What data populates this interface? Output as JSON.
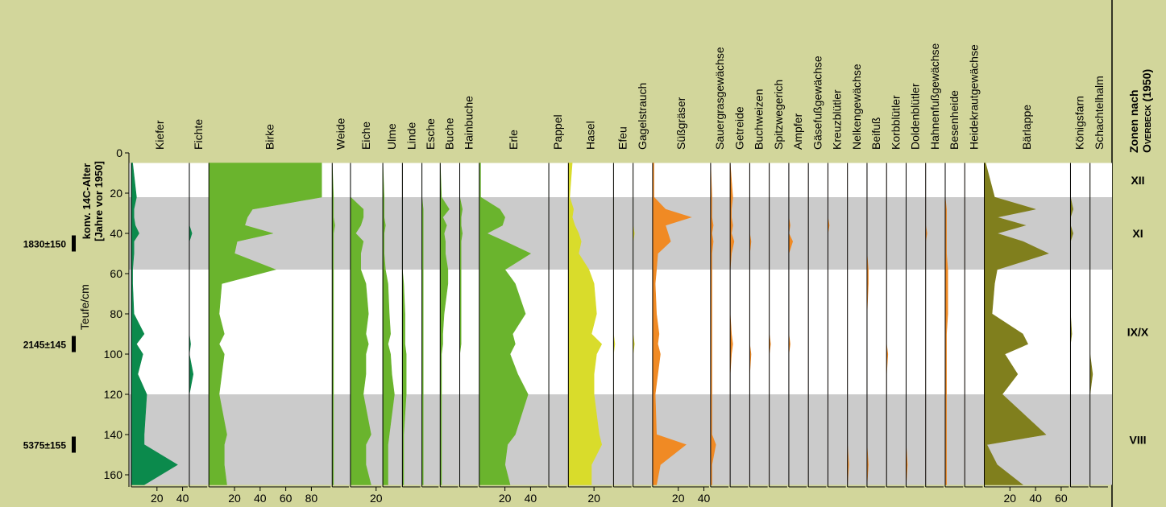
{
  "chart_data": {
    "type": "area",
    "y_title": "Teufe/cm",
    "age_title": [
      "konv. 14C-Alter",
      "[Jahre vor 1950]"
    ],
    "zone_title": [
      "Zonen nach",
      "Overbeck (1950)"
    ],
    "ylim": [
      0,
      166
    ],
    "yticks": [
      0,
      20,
      40,
      60,
      80,
      100,
      120,
      140,
      160
    ],
    "depth": [
      5,
      22,
      28,
      32,
      36,
      40,
      44,
      50,
      58,
      65,
      80,
      90,
      95,
      100,
      110,
      120,
      140,
      145,
      155,
      165
    ],
    "zones": [
      {
        "label": "XII",
        "from": 5,
        "to": 22,
        "shaded": false
      },
      {
        "label": "XI",
        "from": 22,
        "to": 58,
        "shaded": true
      },
      {
        "label": "IX/X",
        "from": 58,
        "to": 120,
        "shaded": false
      },
      {
        "label": "VIII",
        "from": 120,
        "to": 165,
        "shaded": true
      }
    ],
    "ages": [
      {
        "label": "1830±150",
        "depth": 45
      },
      {
        "label": "2145±145",
        "depth": 95
      },
      {
        "label": "5375±155",
        "depth": 145
      }
    ],
    "series": [
      {
        "name": "Kiefer",
        "color": "#0b8a4c",
        "xlim": [
          0,
          44
        ],
        "xticks": [
          20,
          40
        ],
        "values": [
          1,
          4,
          2,
          2,
          3,
          6,
          2,
          2,
          1,
          1,
          2,
          10,
          4,
          9,
          5,
          12,
          10,
          10,
          36,
          10
        ]
      },
      {
        "name": "Fichte",
        "color": "#0b8a4c",
        "xlim": [
          0,
          14
        ],
        "values": [
          0,
          0,
          0,
          0,
          0,
          2,
          0,
          0,
          0,
          0,
          0,
          0,
          1,
          0,
          3,
          0,
          0,
          0,
          0,
          0
        ]
      },
      {
        "name": "Birke",
        "color": "#6ab42d",
        "xlim": [
          0,
          95
        ],
        "xticks": [
          20,
          40,
          60,
          80
        ],
        "values": [
          88,
          88,
          34,
          30,
          28,
          50,
          22,
          20,
          52,
          10,
          8,
          12,
          8,
          12,
          10,
          8,
          14,
          12,
          12,
          14
        ]
      },
      {
        "name": "Weide",
        "color": "#6ab42d",
        "xlim": [
          0,
          13
        ],
        "values": [
          0,
          1,
          1,
          1,
          2,
          1,
          1,
          1,
          1,
          1,
          1,
          1,
          1,
          1,
          1,
          1,
          1,
          1,
          1,
          1
        ]
      },
      {
        "name": "Eiche",
        "color": "#6ab42d",
        "xlim": [
          0,
          24
        ],
        "xticks": [
          20
        ],
        "values": [
          0,
          0,
          10,
          10,
          8,
          4,
          10,
          8,
          8,
          12,
          14,
          12,
          14,
          12,
          12,
          10,
          16,
          12,
          12,
          16
        ]
      },
      {
        "name": "Ulme",
        "color": "#6ab42d",
        "xlim": [
          0,
          14
        ],
        "values": [
          0,
          1,
          1,
          1,
          2,
          1,
          1,
          1,
          2,
          4,
          5,
          6,
          4,
          6,
          7,
          9,
          5,
          4,
          4,
          4
        ]
      },
      {
        "name": "Linde",
        "color": "#6ab42d",
        "xlim": [
          0,
          14
        ],
        "values": [
          0,
          0,
          0,
          0,
          0,
          0,
          0,
          0,
          0,
          1,
          2,
          2,
          2,
          3,
          3,
          3,
          1,
          1,
          1,
          1
        ]
      },
      {
        "name": "Esche",
        "color": "#6ab42d",
        "xlim": [
          0,
          13
        ],
        "values": [
          0,
          0,
          1,
          1,
          1,
          1,
          1,
          1,
          1,
          1,
          1,
          1,
          1,
          1,
          1,
          1,
          1,
          1,
          1,
          1
        ]
      },
      {
        "name": "Buche",
        "color": "#6ab42d",
        "xlim": [
          0,
          14
        ],
        "values": [
          0,
          1,
          7,
          2,
          5,
          3,
          4,
          4,
          6,
          6,
          3,
          2,
          2,
          1,
          1,
          1,
          1,
          1,
          1,
          1
        ]
      },
      {
        "name": "Hainbuche",
        "color": "#6ab42d",
        "xlim": [
          0,
          14
        ],
        "values": [
          0,
          0,
          2,
          1,
          1,
          2,
          1,
          1,
          1,
          1,
          1,
          1,
          1,
          0,
          0,
          0,
          0,
          0,
          0,
          0
        ]
      },
      {
        "name": "Erle",
        "color": "#6ab42d",
        "xlim": [
          0,
          53
        ],
        "xticks": [
          20,
          40
        ],
        "values": [
          1,
          1,
          16,
          20,
          18,
          6,
          20,
          40,
          20,
          28,
          36,
          26,
          28,
          24,
          30,
          38,
          28,
          22,
          20,
          24
        ]
      },
      {
        "name": "Pappel",
        "color": "#6ab42d",
        "xlim": [
          0,
          14
        ],
        "values": [
          0,
          0,
          0,
          0,
          0,
          0,
          0,
          0,
          0,
          0,
          0,
          0,
          0,
          0,
          0,
          0,
          0,
          0,
          0,
          0
        ]
      },
      {
        "name": "Hasel",
        "color": "#d9dc2b",
        "xlim": [
          0,
          34
        ],
        "xticks": [
          20
        ],
        "values": [
          3,
          1,
          4,
          3,
          5,
          8,
          10,
          8,
          16,
          20,
          22,
          18,
          26,
          22,
          20,
          20,
          24,
          26,
          18,
          18
        ]
      },
      {
        "name": "Efeu",
        "color": "#d9dc2b",
        "xlim": [
          0,
          14
        ],
        "values": [
          0,
          0,
          0,
          0,
          0,
          0,
          0,
          0,
          0,
          0,
          0,
          0,
          1,
          0,
          0,
          0,
          0,
          0,
          0,
          0
        ]
      },
      {
        "name": "Gagelstrauch",
        "color": "#d9dc2b",
        "xlim": [
          0,
          14
        ],
        "values": [
          0,
          0,
          0,
          0,
          0,
          1,
          0,
          0,
          0,
          0,
          0,
          0,
          1,
          0,
          0,
          0,
          0,
          0,
          0,
          0
        ]
      },
      {
        "name": "Süßgräser",
        "color": "#f08a24",
        "xlim": [
          0,
          44
        ],
        "xticks": [
          20,
          40
        ],
        "values": [
          1,
          1,
          10,
          30,
          10,
          12,
          14,
          4,
          3,
          2,
          3,
          5,
          4,
          6,
          4,
          2,
          3,
          26,
          6,
          3
        ]
      },
      {
        "name": "Sauergrasgewächse",
        "color": "#f08a24",
        "xlim": [
          0,
          14
        ],
        "values": [
          0,
          1,
          1,
          1,
          2,
          1,
          2,
          1,
          1,
          1,
          1,
          1,
          1,
          1,
          1,
          1,
          1,
          4,
          1,
          1
        ]
      },
      {
        "name": "Getreide",
        "color": "#f08a24",
        "xlim": [
          0,
          14
        ],
        "values": [
          0,
          2,
          1,
          1,
          2,
          1,
          3,
          1,
          0,
          0,
          0,
          1,
          2,
          1,
          0,
          0,
          0,
          0,
          0,
          0
        ]
      },
      {
        "name": "Buchweizen",
        "color": "#f08a24",
        "xlim": [
          0,
          14
        ],
        "values": [
          0,
          0,
          0,
          0,
          0,
          0,
          1,
          0,
          0,
          0,
          0,
          0,
          0,
          1,
          0,
          0,
          0,
          0,
          0,
          0
        ]
      },
      {
        "name": "Spitzwegerich",
        "color": "#f08a24",
        "xlim": [
          0,
          14
        ],
        "values": [
          0,
          0,
          0,
          0,
          0,
          0,
          0,
          0,
          0,
          0,
          0,
          0,
          1,
          0,
          0,
          0,
          0,
          0,
          0,
          0
        ]
      },
      {
        "name": "Ampfer",
        "color": "#f08a24",
        "xlim": [
          0,
          14
        ],
        "values": [
          0,
          0,
          0,
          0,
          1,
          0,
          3,
          0,
          0,
          0,
          0,
          0,
          1,
          0,
          0,
          0,
          0,
          0,
          0,
          0
        ]
      },
      {
        "name": "Gäsefußgewächse",
        "color": "#f08a24",
        "xlim": [
          0,
          14
        ],
        "values": [
          0,
          0,
          0,
          0,
          0,
          0,
          0,
          0,
          0,
          0,
          0,
          0,
          0,
          0,
          0,
          0,
          0,
          0,
          0,
          0
        ]
      },
      {
        "name": "Kreuzblütler",
        "color": "#f08a24",
        "xlim": [
          0,
          14
        ],
        "values": [
          0,
          0,
          0,
          0,
          1,
          0,
          0,
          0,
          0,
          0,
          0,
          0,
          0,
          0,
          0,
          0,
          0,
          0,
          0,
          0
        ]
      },
      {
        "name": "Nelkengewächse",
        "color": "#f08a24",
        "xlim": [
          0,
          14
        ],
        "values": [
          0,
          0,
          0,
          0,
          0,
          0,
          0,
          0,
          0,
          0,
          0,
          0,
          0,
          0,
          0,
          0,
          0,
          0,
          1,
          0
        ]
      },
      {
        "name": "Beifuß",
        "color": "#f08a24",
        "xlim": [
          0,
          14
        ],
        "values": [
          0,
          0,
          0,
          0,
          0,
          0,
          0,
          0,
          1,
          1,
          0,
          0,
          0,
          0,
          0,
          0,
          0,
          0,
          1,
          0
        ]
      },
      {
        "name": "Korbblütler",
        "color": "#f08a24",
        "xlim": [
          0,
          14
        ],
        "values": [
          0,
          0,
          0,
          0,
          0,
          0,
          0,
          0,
          0,
          0,
          0,
          0,
          0,
          1,
          0,
          0,
          0,
          0,
          0,
          0
        ]
      },
      {
        "name": "Doldenblütler",
        "color": "#f08a24",
        "xlim": [
          0,
          14
        ],
        "values": [
          0,
          0,
          0,
          0,
          0,
          0,
          0,
          0,
          0,
          0,
          0,
          0,
          0,
          0,
          0,
          0,
          0,
          0,
          1,
          0
        ]
      },
      {
        "name": "Hahnenfußgewächse",
        "color": "#f08a24",
        "xlim": [
          0,
          14
        ],
        "values": [
          0,
          0,
          0,
          0,
          0,
          1,
          0,
          0,
          0,
          0,
          0,
          0,
          0,
          0,
          0,
          0,
          0,
          0,
          0,
          0
        ]
      },
      {
        "name": "Besenheide",
        "color": "#f08a24",
        "xlim": [
          0,
          14
        ],
        "values": [
          0,
          0,
          1,
          1,
          1,
          1,
          1,
          1,
          2,
          2,
          2,
          1,
          1,
          1,
          1,
          1,
          1,
          1,
          1,
          1
        ]
      },
      {
        "name": "Heidekrautgewächse",
        "color": "#f08a24",
        "xlim": [
          0,
          14
        ],
        "values": [
          0,
          0,
          0,
          0,
          0,
          0,
          0,
          0,
          0,
          0,
          0,
          0,
          0,
          0,
          0,
          0,
          0,
          0,
          0,
          0
        ]
      },
      {
        "name": "Bärlappe",
        "color": "#807f1d",
        "xlim": [
          0,
          66
        ],
        "xticks": [
          20,
          40,
          60
        ],
        "values": [
          1,
          8,
          40,
          10,
          32,
          10,
          30,
          50,
          10,
          8,
          6,
          30,
          34,
          16,
          26,
          14,
          48,
          2,
          10,
          30
        ]
      },
      {
        "name": "Königsfarn",
        "color": "#807f1d",
        "xlim": [
          0,
          14
        ],
        "values": [
          0,
          0,
          2,
          0,
          0,
          2,
          0,
          0,
          0,
          0,
          0,
          1,
          0,
          0,
          0,
          0,
          0,
          0,
          0,
          0
        ]
      },
      {
        "name": "Schachtelhalm",
        "color": "#807f1d",
        "xlim": [
          0,
          14
        ],
        "values": [
          0,
          0,
          0,
          0,
          0,
          0,
          0,
          0,
          0,
          0,
          0,
          0,
          0,
          0,
          2,
          0,
          0,
          0,
          0,
          0
        ]
      }
    ]
  }
}
